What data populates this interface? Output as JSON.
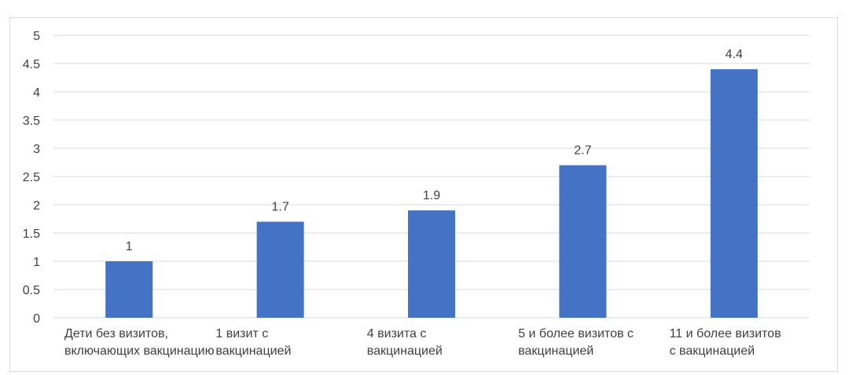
{
  "chart_data": {
    "type": "bar",
    "title": "",
    "xlabel": "",
    "ylabel": "",
    "ylim": [
      0,
      5
    ],
    "yticks": [
      0,
      0.5,
      1,
      1.5,
      2,
      2.5,
      3,
      3.5,
      4,
      4.5,
      5
    ],
    "grid": true,
    "legend": "none",
    "categories": [
      [
        "Дети без визитов,",
        "включающих вакцинацию"
      ],
      [
        "1 визит с",
        "вакцинацией"
      ],
      [
        "4 визита с",
        "вакцинацией"
      ],
      [
        "5 и более визитов с",
        "вакцинацией"
      ],
      [
        "11 и более визитов",
        "с вакцинацией"
      ]
    ],
    "values": [
      1,
      1.7,
      1.9,
      2.7,
      4.4
    ],
    "data_labels": [
      "1",
      "1.7",
      "1.9",
      "2.7",
      "4.4"
    ],
    "bar_color": "#4472c4"
  }
}
